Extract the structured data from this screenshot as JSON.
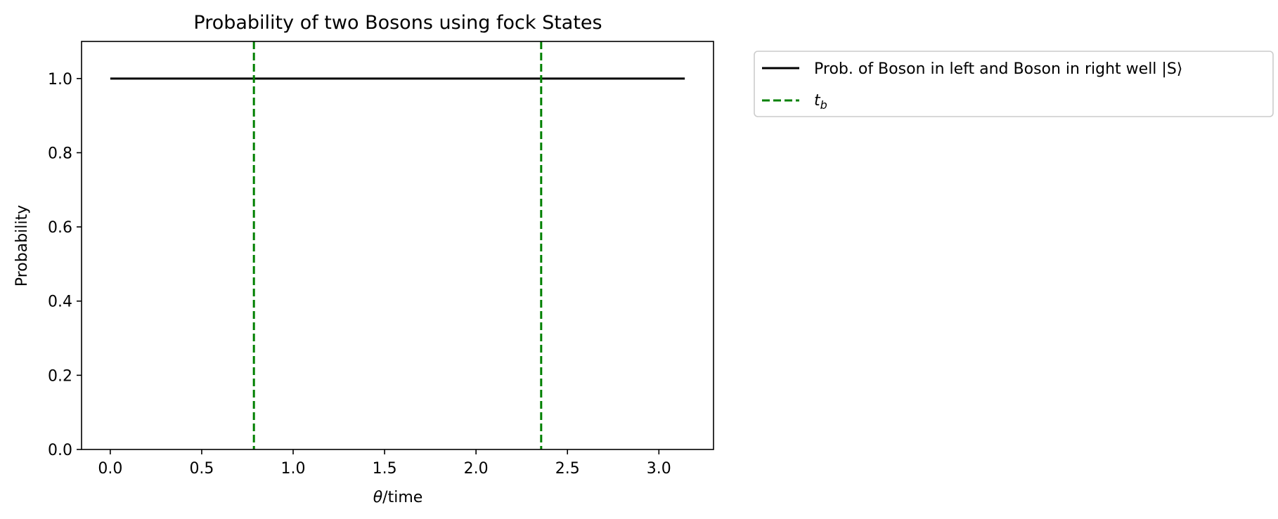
{
  "chart_data": {
    "type": "line",
    "title": "Probability of two Bosons using fock States",
    "xlabel_symbol": "θ",
    "xlabel_rest": "/time",
    "ylabel": "Probability",
    "xlim": [
      -0.1571,
      3.2987
    ],
    "ylim": [
      0.0,
      1.1
    ],
    "xticks": [
      0.0,
      0.5,
      1.0,
      1.5,
      2.0,
      2.5,
      3.0
    ],
    "xtick_labels": [
      "0.0",
      "0.5",
      "1.0",
      "1.5",
      "2.0",
      "2.5",
      "3.0"
    ],
    "yticks": [
      0.0,
      0.2,
      0.4,
      0.6,
      0.8,
      1.0
    ],
    "ytick_labels": [
      "0.0",
      "0.2",
      "0.4",
      "0.6",
      "0.8",
      "1.0"
    ],
    "grid": false,
    "legend_position": "outside upper right",
    "series": [
      {
        "name": "Prob. of Boson in left and Boson in right well |S⟩",
        "color": "#000000",
        "style": "solid",
        "x": [
          0.0,
          3.1416
        ],
        "y": [
          1.0,
          1.0
        ]
      }
    ],
    "vlines": {
      "name_base": "t",
      "name_sub": "b",
      "color": "#008000",
      "style": "dashed",
      "x": [
        0.7854,
        2.3562
      ]
    }
  }
}
